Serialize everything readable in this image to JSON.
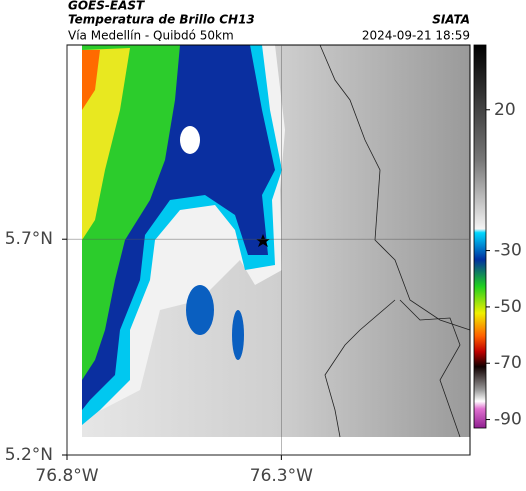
{
  "header": {
    "source": "GOES-EAST",
    "title": "Temperatura de Brillo CH13",
    "subtitle": "Vía Medellín - Quibdó 50km",
    "brand": "SIATA",
    "datetime": "2024-09-21 18:59"
  },
  "map": {
    "xlim": [
      -76.8,
      -75.86
    ],
    "ylim": [
      5.2,
      6.15
    ],
    "xticks": [
      {
        "value": -76.8,
        "label": "76.8°W"
      },
      {
        "value": -76.3,
        "label": "76.3°W"
      }
    ],
    "yticks": [
      {
        "value": 5.2,
        "label": "5.2°N"
      },
      {
        "value": 5.7,
        "label": "5.7°N"
      }
    ]
  },
  "colorbar": {
    "lim": [
      -93,
      43
    ],
    "ticks": [
      20,
      -30,
      -50,
      -70,
      -90
    ]
  }
}
